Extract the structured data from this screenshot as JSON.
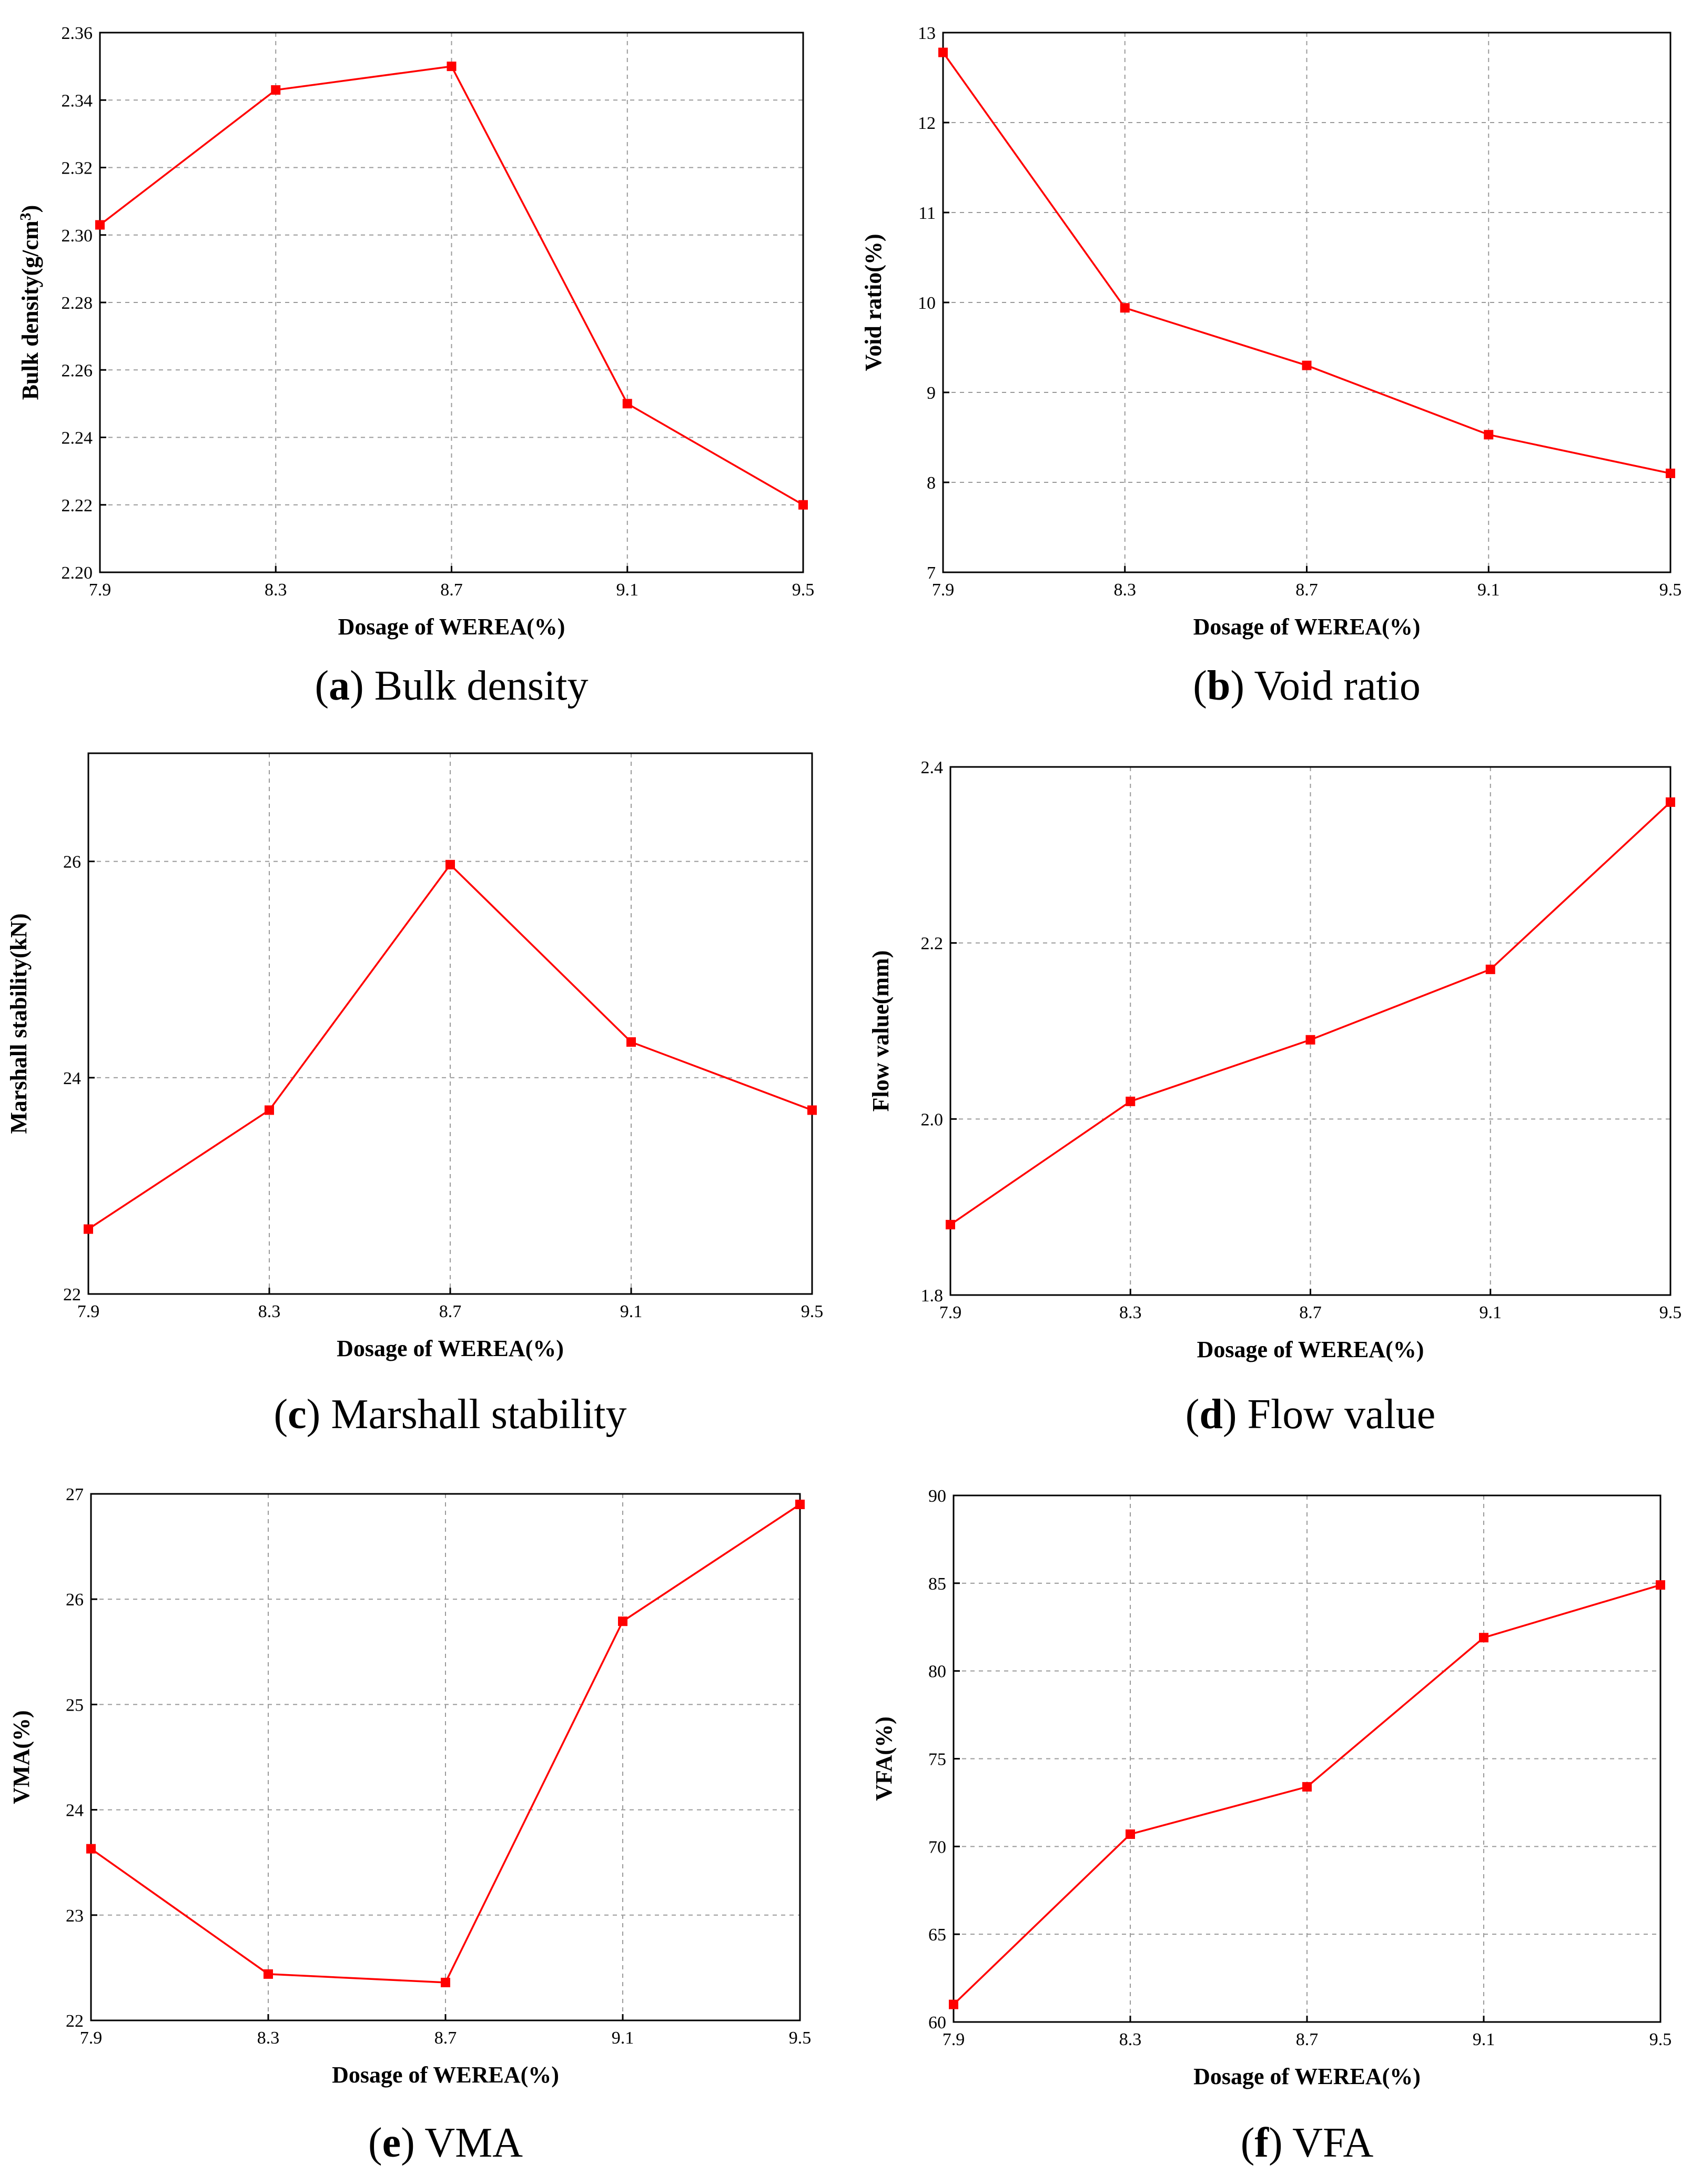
{
  "figure": {
    "panels_count": 6
  },
  "chart_data": [
    {
      "type": "line",
      "panel_label": "a",
      "caption": "Bulk density",
      "xlabel": "Dosage of WEREA(%)",
      "ylabel": "Bulk density(g/cm",
      "ylabel_superscript": "3",
      "ylabel_suffix": ")",
      "x": [
        7.9,
        8.3,
        8.7,
        9.1,
        9.5
      ],
      "values": [
        2.303,
        2.343,
        2.35,
        2.25,
        2.22
      ],
      "xlim": [
        7.9,
        9.5
      ],
      "ylim": [
        2.2,
        2.36
      ],
      "x_ticks": [
        "7.9",
        "8.3",
        "8.7",
        "9.1",
        "9.5"
      ],
      "y_ticks": [
        "2.20",
        "2.22",
        "2.24",
        "2.26",
        "2.28",
        "2.30",
        "2.32",
        "2.34",
        "2.36"
      ],
      "y_tick_values": [
        2.2,
        2.22,
        2.24,
        2.26,
        2.28,
        2.3,
        2.32,
        2.34,
        2.36
      ],
      "grid": true,
      "color": "#ff0000"
    },
    {
      "type": "line",
      "panel_label": "b",
      "caption": "Void ratio",
      "xlabel": "Dosage of WEREA(%)",
      "ylabel": "Void ratio(%)",
      "x": [
        7.9,
        8.3,
        8.7,
        9.1,
        9.5
      ],
      "values": [
        12.78,
        9.94,
        9.3,
        8.53,
        8.1
      ],
      "xlim": [
        7.9,
        9.5
      ],
      "ylim": [
        7,
        13
      ],
      "x_ticks": [
        "7.9",
        "8.3",
        "8.7",
        "9.1",
        "9.5"
      ],
      "y_ticks": [
        "7",
        "8",
        "9",
        "10",
        "11",
        "12",
        "13"
      ],
      "y_tick_values": [
        7,
        8,
        9,
        10,
        11,
        12,
        13
      ],
      "grid": true,
      "color": "#ff0000"
    },
    {
      "type": "line",
      "panel_label": "c",
      "caption": "Marshall stability",
      "xlabel": "Dosage of WEREA(%)",
      "ylabel": "Marshall stability(kN)",
      "x": [
        7.9,
        8.3,
        8.7,
        9.1,
        9.5
      ],
      "values": [
        22.6,
        23.7,
        25.97,
        24.33,
        23.7
      ],
      "xlim": [
        7.9,
        9.5
      ],
      "ylim": [
        22,
        27
      ],
      "x_ticks": [
        "7.9",
        "8.3",
        "8.7",
        "9.1",
        "9.5"
      ],
      "y_ticks": [
        "22",
        "24",
        "26"
      ],
      "y_tick_values": [
        22,
        24,
        26
      ],
      "grid": true,
      "color": "#ff0000"
    },
    {
      "type": "line",
      "panel_label": "d",
      "caption": "Flow value",
      "xlabel": "Dosage of WEREA(%)",
      "ylabel": "Flow value(mm)",
      "x": [
        7.9,
        8.3,
        8.7,
        9.1,
        9.5
      ],
      "values": [
        1.88,
        2.02,
        2.09,
        2.17,
        2.36
      ],
      "xlim": [
        7.9,
        9.5
      ],
      "ylim": [
        1.8,
        2.4
      ],
      "x_ticks": [
        "7.9",
        "8.3",
        "8.7",
        "9.1",
        "9.5"
      ],
      "y_ticks": [
        "1.8",
        "2.0",
        "2.2",
        "2.4"
      ],
      "y_tick_values": [
        1.8,
        2.0,
        2.2,
        2.4
      ],
      "grid": true,
      "color": "#ff0000"
    },
    {
      "type": "line",
      "panel_label": "e",
      "caption": "VMA",
      "xlabel": "Dosage of WEREA(%)",
      "ylabel": "VMA(%)",
      "x": [
        7.9,
        8.3,
        8.7,
        9.1,
        9.5
      ],
      "values": [
        23.63,
        22.44,
        22.36,
        25.79,
        26.9
      ],
      "xlim": [
        7.9,
        9.5
      ],
      "ylim": [
        22,
        27
      ],
      "x_ticks": [
        "7.9",
        "8.3",
        "8.7",
        "9.1",
        "9.5"
      ],
      "y_ticks": [
        "22",
        "23",
        "24",
        "25",
        "26",
        "27"
      ],
      "y_tick_values": [
        22,
        23,
        24,
        25,
        26,
        27
      ],
      "grid": true,
      "color": "#ff0000"
    },
    {
      "type": "line",
      "panel_label": "f",
      "caption": "VFA",
      "xlabel": "Dosage of WEREA(%)",
      "ylabel": "VFA(%)",
      "x": [
        7.9,
        8.3,
        8.7,
        9.1,
        9.5
      ],
      "values": [
        61.0,
        70.7,
        73.4,
        81.9,
        84.9
      ],
      "xlim": [
        7.9,
        9.5
      ],
      "ylim": [
        60,
        90
      ],
      "x_ticks": [
        "7.9",
        "8.3",
        "8.7",
        "9.1",
        "9.5"
      ],
      "y_ticks": [
        "60",
        "65",
        "70",
        "75",
        "80",
        "85",
        "90"
      ],
      "y_tick_values": [
        60,
        65,
        70,
        75,
        80,
        85,
        90
      ],
      "grid": true,
      "color": "#ff0000"
    }
  ]
}
